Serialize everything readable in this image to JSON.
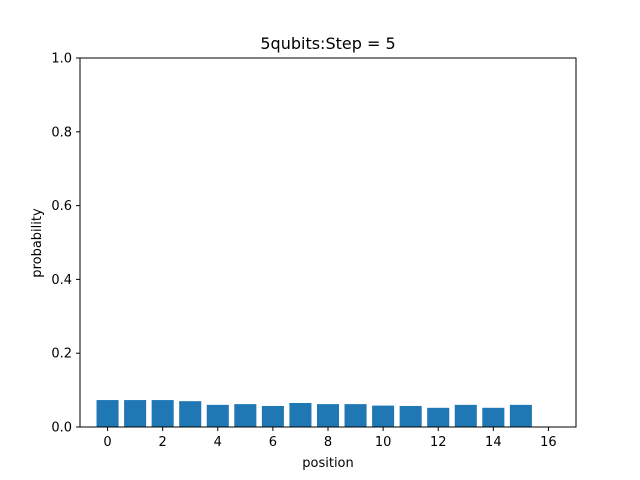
{
  "chart_data": {
    "type": "bar",
    "title": "5qubits:Step = 5",
    "xlabel": "position",
    "ylabel": "probability",
    "x": [
      0,
      1,
      2,
      3,
      4,
      5,
      6,
      7,
      8,
      9,
      10,
      11,
      12,
      13,
      14,
      15
    ],
    "values": [
      0.073,
      0.073,
      0.073,
      0.07,
      0.06,
      0.062,
      0.057,
      0.065,
      0.062,
      0.062,
      0.058,
      0.057,
      0.052,
      0.06,
      0.052,
      0.06
    ],
    "xlim": [
      -1,
      17
    ],
    "ylim": [
      0,
      1.0
    ],
    "xticks": [
      0,
      2,
      4,
      6,
      8,
      10,
      12,
      14,
      16
    ],
    "yticks": [
      "0.0",
      "0.2",
      "0.4",
      "0.6",
      "0.8",
      "1.0"
    ],
    "grid": false,
    "bar_color": "#1f77b4"
  }
}
